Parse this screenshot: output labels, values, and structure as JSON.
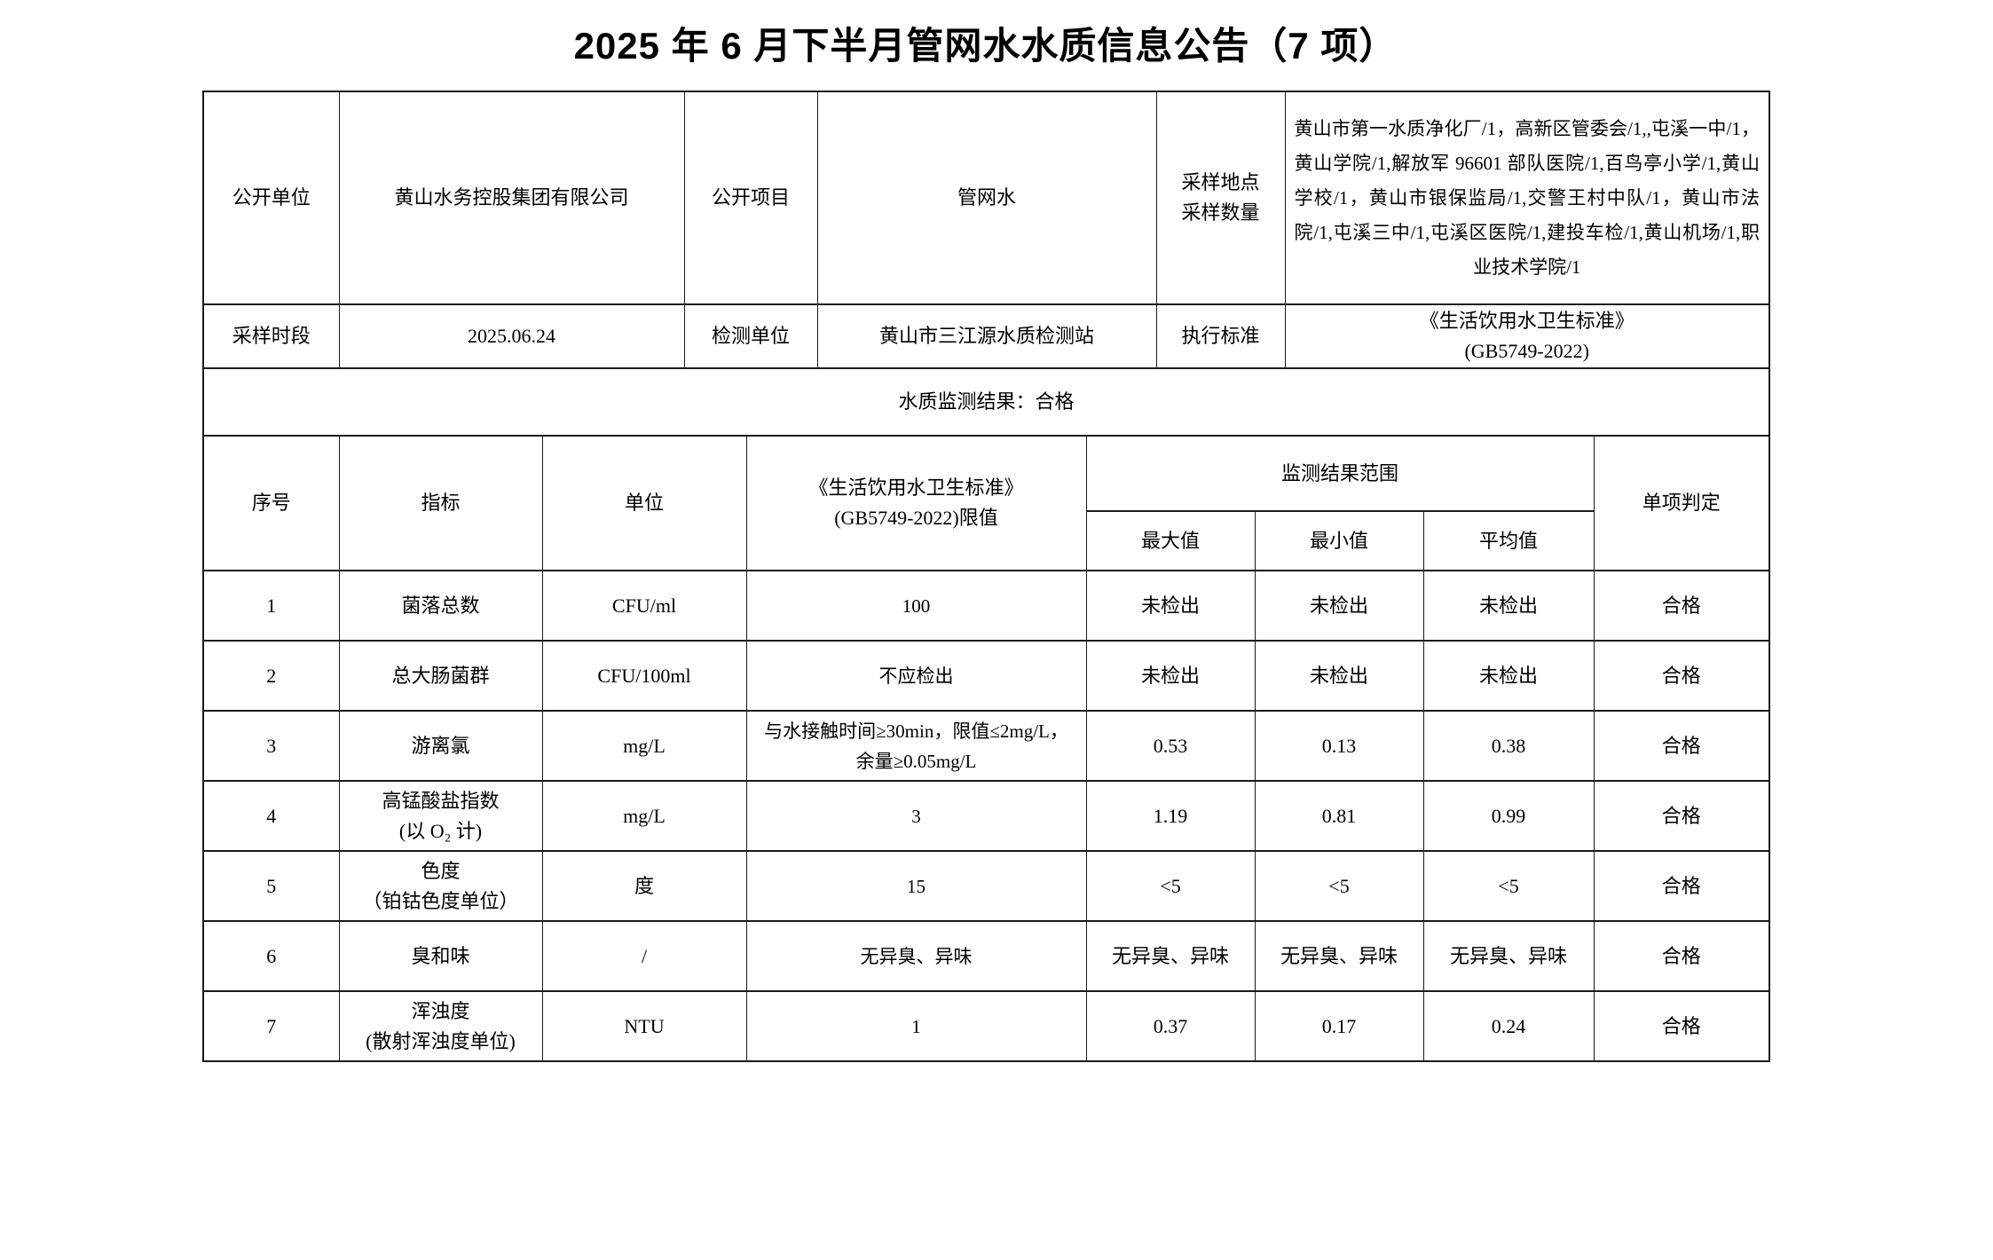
{
  "title": "2025 年 6 月下半月管网水水质信息公告（7 项）",
  "info": {
    "public_unit_label": "公开单位",
    "public_unit_value": "黄山水务控股集团有限公司",
    "public_project_label": "公开项目",
    "public_project_value": "管网水",
    "sampling_site_label": "采样地点\n采样数量",
    "sampling_sites_value": "黄山市第一水质净化厂/1，高新区管委会/1,,屯溪一中/1，黄山学院/1,解放军 96601 部队医院/1,百鸟亭小学/1,黄山学校/1，黄山市银保监局/1,交警王村中队/1，黄山市法院/1,屯溪三中/1,屯溪区医院/1,建投车检/1,黄山机场/1,职业技术学院/1",
    "sampling_period_label": "采样时段",
    "sampling_period_value": "2025.06.24",
    "testing_unit_label": "检测单位",
    "testing_unit_value": "黄山市三江源水质检测站",
    "standard_label": "执行标准",
    "standard_value": "《生活饮用水卫生标准》\n(GB5749-2022)",
    "result_summary": "水质监测结果：合格"
  },
  "table": {
    "headers": {
      "no": "序号",
      "indicator": "指标",
      "unit": "单位",
      "limit": "《生活饮用水卫生标准》\n(GB5749-2022)限值",
      "range_group": "监测结果范围",
      "max": "最大值",
      "min": "最小值",
      "avg": "平均值",
      "verdict": "单项判定"
    },
    "rows": [
      {
        "no": "1",
        "indicator": "菌落总数",
        "unit": "CFU/ml",
        "limit": "100",
        "max": "未检出",
        "min": "未检出",
        "avg": "未检出",
        "verdict": "合格"
      },
      {
        "no": "2",
        "indicator": "总大肠菌群",
        "unit": "CFU/100ml",
        "limit": "不应检出",
        "max": "未检出",
        "min": "未检出",
        "avg": "未检出",
        "verdict": "合格"
      },
      {
        "no": "3",
        "indicator": "游离氯",
        "unit": "mg/L",
        "limit": "与水接触时间≥30min，限值≤2mg/L，\n余量≥0.05mg/L",
        "max": "0.53",
        "min": "0.13",
        "avg": "0.38",
        "verdict": "合格"
      },
      {
        "no": "4",
        "indicator": "高锰酸盐指数\n(以 O₂ 计)",
        "unit": "mg/L",
        "limit": "3",
        "max": "1.19",
        "min": "0.81",
        "avg": "0.99",
        "verdict": "合格"
      },
      {
        "no": "5",
        "indicator": "色度\n（铂钴色度单位）",
        "unit": "度",
        "limit": "15",
        "max": "<5",
        "min": "<5",
        "avg": "<5",
        "verdict": "合格"
      },
      {
        "no": "6",
        "indicator": "臭和味",
        "unit": "/",
        "limit": "无异臭、异味",
        "max": "无异臭、异味",
        "min": "无异臭、异味",
        "avg": "无异臭、异味",
        "verdict": "合格"
      },
      {
        "no": "7",
        "indicator": "浑浊度\n(散射浑浊度单位)",
        "unit": "NTU",
        "limit": "1",
        "max": "0.37",
        "min": "0.17",
        "avg": "0.24",
        "verdict": "合格"
      }
    ]
  }
}
